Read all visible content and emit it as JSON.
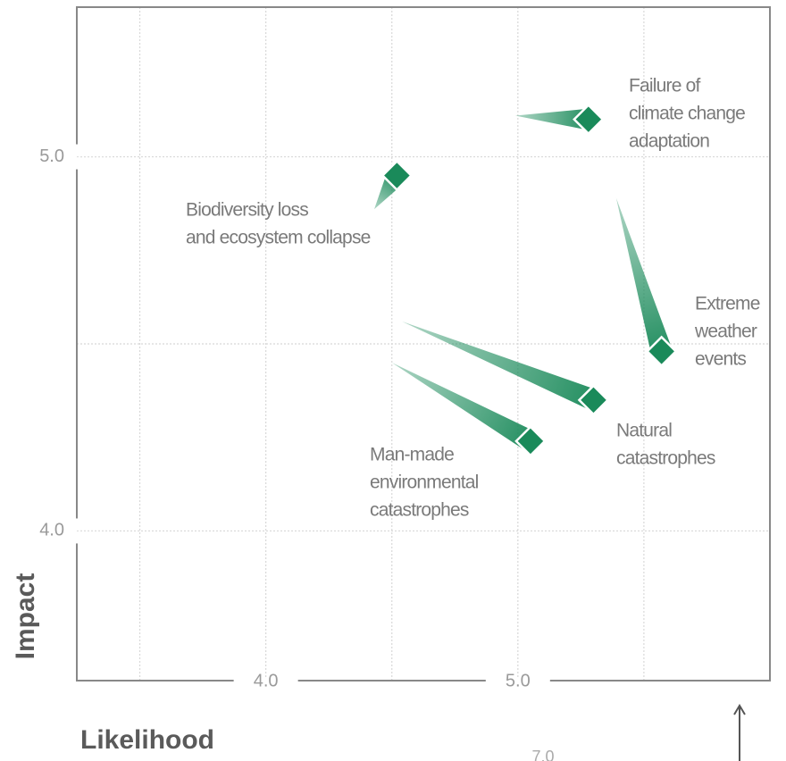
{
  "chart_data": {
    "type": "comet-scatter",
    "x_label": "Likelihood",
    "y_label": "Impact",
    "xlim": [
      3.25,
      6.0
    ],
    "ylim": [
      3.6,
      5.4
    ],
    "xticks": [
      {
        "value": 4,
        "label": "4.0"
      },
      {
        "value": 5,
        "label": "5.0"
      }
    ],
    "yticks": [
      {
        "value": 4,
        "label": "4.0"
      },
      {
        "value": 5,
        "label": "5.0"
      }
    ],
    "xgrid": [
      3.5,
      4.5,
      5.5
    ],
    "ygrid": [
      4.5
    ],
    "grid": true,
    "color": "#1a8a5a",
    "points": [
      {
        "label": [
          "Failure of",
          "climate change",
          "adaptation"
        ],
        "x": 5.28,
        "y": 5.1,
        "from_x": 4.99,
        "from_y": 5.11
      },
      {
        "label": [
          "Biodiversity loss",
          "and ecosystem collapse"
        ],
        "x": 4.52,
        "y": 4.95,
        "from_x": 4.43,
        "from_y": 4.86
      },
      {
        "label": [
          "Extreme",
          "weather",
          "events"
        ],
        "x": 5.57,
        "y": 4.48,
        "from_x": 5.39,
        "from_y": 4.89
      },
      {
        "label": [
          "Natural",
          "catastrophes"
        ],
        "x": 5.3,
        "y": 4.35,
        "from_x": 4.54,
        "from_y": 4.56
      },
      {
        "label": [
          "Man-made",
          "environmental",
          "catastrophes"
        ],
        "x": 5.05,
        "y": 4.24,
        "from_x": 4.5,
        "from_y": 4.45
      }
    ],
    "footer_text": "7.0"
  }
}
